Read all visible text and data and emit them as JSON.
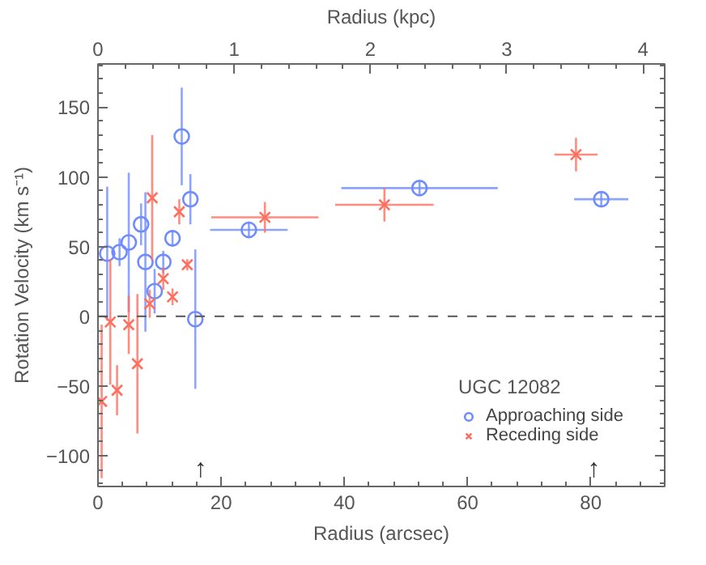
{
  "chart_data": {
    "type": "scatter",
    "xlabel": "Radius (arcsec)",
    "ylabel": "Rotation Velocity (km s⁻¹)",
    "x2label": "Radius (kpc)",
    "legend_title": "UGC 12082",
    "xlim": [
      0,
      92
    ],
    "xticks": [
      0,
      20,
      40,
      60,
      80
    ],
    "x2lim": [
      0,
      4.16
    ],
    "x2ticks": [
      0,
      1,
      2,
      3,
      4
    ],
    "ylim": [
      -122,
      181
    ],
    "yticks": [
      -100,
      -50,
      0,
      50,
      100,
      150
    ],
    "grid": false,
    "legend": "bottom right",
    "ref_lines": [
      {
        "axis": "y",
        "value": 0,
        "label": null,
        "line_style": "dashed",
        "color": "#555555"
      }
    ],
    "annotations": [
      "↑",
      "↑"
    ],
    "series": [
      {
        "name": "Approaching side",
        "color": "#6f8cff",
        "marker": "circle",
        "x": [
          1.5,
          3.5,
          5.0,
          7.0,
          7.7,
          9.2,
          10.6,
          12.1,
          13.6,
          15.0,
          15.8,
          24.5,
          52.2,
          81.7
        ],
        "values": [
          45,
          46,
          53,
          66,
          39,
          18,
          39,
          56,
          129,
          84,
          -2,
          62,
          92,
          84
        ],
        "errors": [
          48,
          10,
          50,
          15,
          50,
          16,
          8,
          6,
          35,
          18,
          50,
          6,
          5,
          5
        ],
        "xerrors": [
          null,
          null,
          null,
          null,
          null,
          null,
          null,
          null,
          null,
          null,
          null,
          6.3,
          12.7,
          4.4
        ]
      },
      {
        "name": "Receding side",
        "color": "#ff6f5f",
        "marker": "cross",
        "x": [
          0.6,
          2.0,
          3.1,
          5.0,
          6.4,
          8.4,
          8.8,
          10.6,
          12.1,
          13.2,
          14.5,
          27.1,
          46.5,
          77.6
        ],
        "values": [
          -61,
          -4,
          -53,
          -6,
          -34,
          9,
          85,
          27,
          14,
          75,
          37,
          71,
          80,
          116
        ],
        "errors": [
          55,
          45,
          18,
          21,
          50,
          10,
          45,
          8,
          6,
          9,
          4,
          11,
          12,
          12
        ],
        "xerrors": [
          null,
          null,
          null,
          null,
          null,
          null,
          null,
          null,
          null,
          null,
          null,
          8.7,
          8,
          3.5
        ]
      }
    ]
  }
}
